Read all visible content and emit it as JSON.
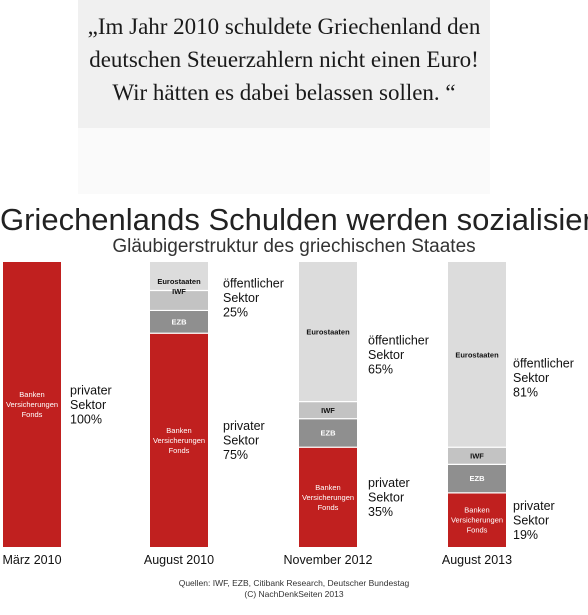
{
  "quote": "„Im Jahr 2010 schuldete Griechenland den deutschen Steuerzahlern nicht einen Euro! Wir hätten es dabei belassen sollen. “",
  "title": "Griechenlands Schulden werden sozialisiert",
  "subtitle": "Gläubigerstruktur des griechischen Staates",
  "source": "Quellen: IWF, EZB, Citibank Research, Deutscher Bundestag",
  "copyright": "(C)  NachDenkSeiten 2013",
  "colors": {
    "private": "#c0201f",
    "ezb": "#8f8f8f",
    "iwf": "#c3c3c3",
    "euro": "#dcdcdc",
    "text": "#111111",
    "inner_text_light": "#ffffff",
    "inner_text_dark": "#111111"
  },
  "chart_data": {
    "type": "bar",
    "stacked": true,
    "categories": [
      "März 2010",
      "August 2010",
      "November 2012",
      "August 2013"
    ],
    "series": [
      {
        "name": "Banken Versicherungen Fonds",
        "values": [
          100,
          75,
          35,
          19
        ]
      },
      {
        "name": "EZB",
        "values": [
          0,
          8,
          10,
          10
        ]
      },
      {
        "name": "IWF",
        "values": [
          0,
          7,
          6,
          6
        ]
      },
      {
        "name": "Eurostaaten",
        "values": [
          0,
          10,
          49,
          65
        ]
      }
    ],
    "segment_labels": {
      "private": [
        "Banken",
        "Versicherungen",
        "Fonds"
      ],
      "ezb": "EZB",
      "iwf": "IWF",
      "euro": "Eurostaaten",
      "euro_iwf_combined": [
        "Eurostaaten",
        "IWF"
      ]
    },
    "side_labels": {
      "private": [
        [
          "privater",
          "Sektor",
          "100%"
        ],
        [
          "privater",
          "Sektor",
          "75%"
        ],
        [
          "privater",
          "Sektor",
          "35%"
        ],
        [
          "privater",
          "Sektor",
          "19%"
        ]
      ],
      "public": [
        null,
        [
          "öffentlicher",
          "Sektor",
          "25%"
        ],
        [
          "öffentlicher",
          "Sektor",
          "65%"
        ],
        [
          "öffentlicher",
          "Sektor",
          "81%"
        ]
      ]
    },
    "ylim": [
      0,
      100
    ],
    "legend": "none",
    "grid": false
  }
}
